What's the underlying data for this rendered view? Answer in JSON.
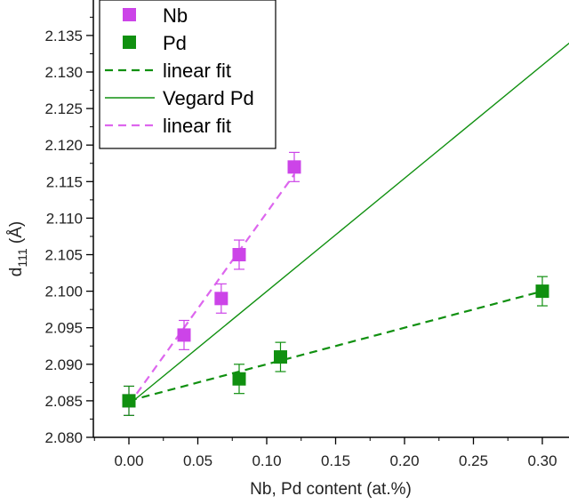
{
  "chart_data": {
    "type": "scatter",
    "xlabel": "Nb, Pd content (at.%)",
    "ylabel_main": "d",
    "ylabel_sub": "111",
    "ylabel_unit": " (Å)",
    "xlim": [
      -0.025,
      0.325
    ],
    "ylim": [
      2.08,
      2.138
    ],
    "xticks": [
      "0.00",
      "0.05",
      "0.10",
      "0.15",
      "0.20",
      "0.25",
      "0.30"
    ],
    "yticks": [
      "2.080",
      "2.085",
      "2.090",
      "2.095",
      "2.100",
      "2.105",
      "2.110",
      "2.115",
      "2.120",
      "2.125",
      "2.130",
      "2.135"
    ],
    "series": [
      {
        "name": "Nb",
        "kind": "points",
        "color": "#cc44e8",
        "x": [
          0.0,
          0.04,
          0.067,
          0.08,
          0.12
        ],
        "y": [
          2.085,
          2.094,
          2.099,
          2.105,
          2.117
        ],
        "err": [
          0.002,
          0.002,
          0.002,
          0.002,
          0.002
        ]
      },
      {
        "name": "Pd",
        "kind": "points",
        "color": "#109010",
        "x": [
          0.0,
          0.08,
          0.11,
          0.3
        ],
        "y": [
          2.085,
          2.088,
          2.091,
          2.1
        ],
        "err": [
          0.002,
          0.002,
          0.002,
          0.002
        ]
      },
      {
        "name": "linear fit",
        "kind": "dashed-line",
        "color": "#109010",
        "x": [
          0.0,
          0.3
        ],
        "y": [
          2.085,
          2.1
        ]
      },
      {
        "name": "Vegard Pd",
        "kind": "solid-line",
        "color": "#109010",
        "x": [
          0.0,
          0.325
        ],
        "y": [
          2.0845,
          2.1348
        ]
      },
      {
        "name": "linear fit",
        "kind": "dashed-line",
        "color": "#dd66ee",
        "x": [
          0.0,
          0.12
        ],
        "y": [
          2.0845,
          2.116
        ]
      }
    ],
    "legend": {
      "position": "top-left",
      "entries": [
        {
          "label": "Nb",
          "symbol": "square",
          "color": "#cc44e8"
        },
        {
          "label": "Pd",
          "symbol": "square",
          "color": "#109010"
        },
        {
          "label": "linear fit",
          "symbol": "dash",
          "color": "#109010"
        },
        {
          "label": "Vegard Pd",
          "symbol": "line",
          "color": "#109010"
        },
        {
          "label": "linear fit",
          "symbol": "dash",
          "color": "#dd66ee"
        }
      ]
    }
  }
}
